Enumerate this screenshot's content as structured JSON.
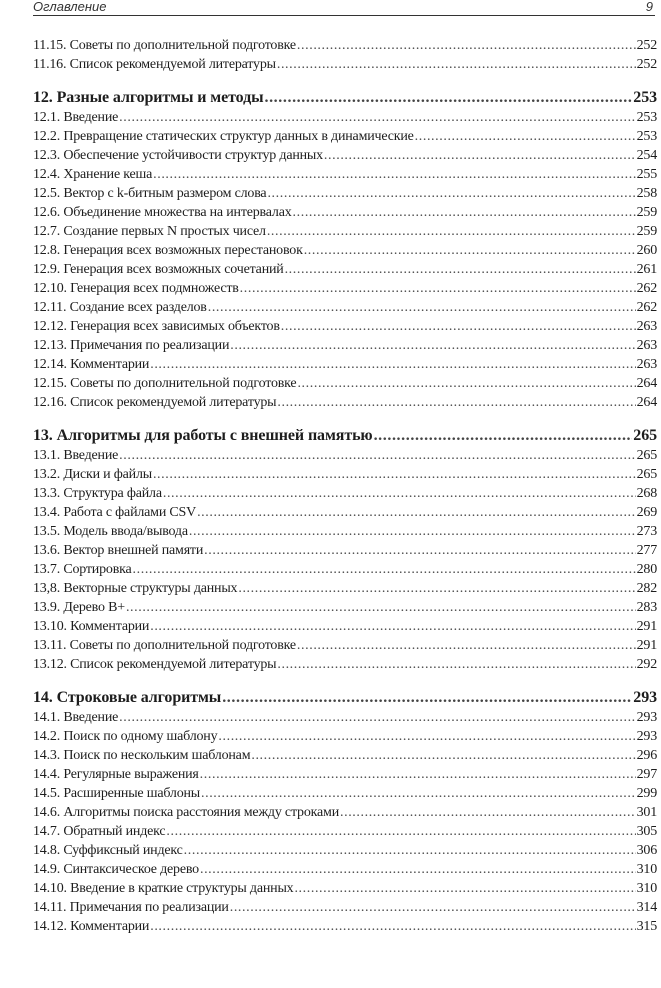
{
  "header": {
    "title": "Оглавление",
    "page_number": "9"
  },
  "toc": [
    {
      "num": "11.15.",
      "title": "Советы по дополнительной подготовке",
      "page": "252",
      "chapter": false
    },
    {
      "num": "11.16.",
      "title": "Список рекомендуемой литературы",
      "page": "252",
      "chapter": false
    },
    {
      "num": "12.",
      "title": "Разные алгоритмы и методы",
      "page": "253",
      "chapter": true
    },
    {
      "num": "12.1.",
      "title": "Введение",
      "page": "253",
      "chapter": false
    },
    {
      "num": "12.2.",
      "title": "Превращение статических структур данных в динамические",
      "page": "253",
      "chapter": false
    },
    {
      "num": "12.3.",
      "title": "Обеспечение устойчивости структур данных",
      "page": "254",
      "chapter": false
    },
    {
      "num": "12.4.",
      "title": "Хранение кеша",
      "page": "255",
      "chapter": false
    },
    {
      "num": "12.5.",
      "title": "Вектор с k-битным размером слова",
      "page": "258",
      "chapter": false
    },
    {
      "num": "12.6.",
      "title": "Объединение множества на интервалах",
      "page": "259",
      "chapter": false
    },
    {
      "num": "12.7.",
      "title": "Создание первых N простых чисел",
      "page": "259",
      "chapter": false
    },
    {
      "num": "12.8.",
      "title": "Генерация всех возможных перестановок",
      "page": "260",
      "chapter": false
    },
    {
      "num": "12.9.",
      "title": "Генерация всех возможных сочетаний",
      "page": "261",
      "chapter": false
    },
    {
      "num": "12.10.",
      "title": "Генерация всех подмножеств",
      "page": "262",
      "chapter": false
    },
    {
      "num": "12.11.",
      "title": "Создание всех разделов",
      "page": "262",
      "chapter": false
    },
    {
      "num": "12.12.",
      "title": "Генерация всех зависимых объектов",
      "page": "263",
      "chapter": false
    },
    {
      "num": "12.13.",
      "title": "Примечания по реализации",
      "page": "263",
      "chapter": false
    },
    {
      "num": "12.14.",
      "title": "Комментарии",
      "page": "263",
      "chapter": false
    },
    {
      "num": "12.15.",
      "title": "Советы по дополнительной подготовке",
      "page": "264",
      "chapter": false
    },
    {
      "num": "12.16.",
      "title": "Список рекомендуемой литературы",
      "page": "264",
      "chapter": false
    },
    {
      "num": "13.",
      "title": "Алгоритмы для работы с внешней памятью",
      "page": "265",
      "chapter": true
    },
    {
      "num": "13.1.",
      "title": "Введение",
      "page": "265",
      "chapter": false
    },
    {
      "num": "13.2.",
      "title": "Диски и файлы",
      "page": "265",
      "chapter": false
    },
    {
      "num": "13.3.",
      "title": "Структура файла",
      "page": "268",
      "chapter": false
    },
    {
      "num": "13.4.",
      "title": "Работа с файлами CSV",
      "page": "269",
      "chapter": false
    },
    {
      "num": "13.5.",
      "title": "Модель ввода/вывода",
      "page": "273",
      "chapter": false
    },
    {
      "num": "13.6.",
      "title": "Вектор внешней памяти",
      "page": "277",
      "chapter": false
    },
    {
      "num": "13.7.",
      "title": "Сортировка",
      "page": "280",
      "chapter": false
    },
    {
      "num": "13,8.",
      "title": "Векторные структуры данных",
      "page": "282",
      "chapter": false
    },
    {
      "num": "13.9.",
      "title": "Дерево B+",
      "page": "283",
      "chapter": false
    },
    {
      "num": "13.10.",
      "title": "Комментарии",
      "page": "291",
      "chapter": false
    },
    {
      "num": "13.11.",
      "title": "Советы по дополнительной подготовке",
      "page": "291",
      "chapter": false
    },
    {
      "num": "13.12.",
      "title": "Список рекомендуемой литературы",
      "page": "292",
      "chapter": false
    },
    {
      "num": "14.",
      "title": "Строковые алгоритмы",
      "page": "293",
      "chapter": true
    },
    {
      "num": "14.1.",
      "title": "Введение",
      "page": "293",
      "chapter": false
    },
    {
      "num": "14.2.",
      "title": "Поиск по одному шаблону",
      "page": "293",
      "chapter": false
    },
    {
      "num": "14.3.",
      "title": "Поиск по нескольким шаблонам",
      "page": "296",
      "chapter": false
    },
    {
      "num": "14.4.",
      "title": "Регулярные выражения",
      "page": "297",
      "chapter": false
    },
    {
      "num": "14.5.",
      "title": "Расширенные шаблоны",
      "page": "299",
      "chapter": false
    },
    {
      "num": "14.6.",
      "title": "Алгоритмы поиска расстояния между строками",
      "page": "301",
      "chapter": false
    },
    {
      "num": "14.7.",
      "title": "Обратный индекс",
      "page": "305",
      "chapter": false
    },
    {
      "num": "14.8.",
      "title": "Суффиксный индекс",
      "page": "306",
      "chapter": false
    },
    {
      "num": "14.9.",
      "title": "Синтаксическое дерево",
      "page": "310",
      "chapter": false
    },
    {
      "num": "14.10.",
      "title": "Введение в краткие структуры данных",
      "page": "310",
      "chapter": false
    },
    {
      "num": "14.11.",
      "title": "Примечания по реализации",
      "page": "314",
      "chapter": false
    },
    {
      "num": "14.12.",
      "title": "Комментарии",
      "page": "315",
      "chapter": false
    }
  ]
}
